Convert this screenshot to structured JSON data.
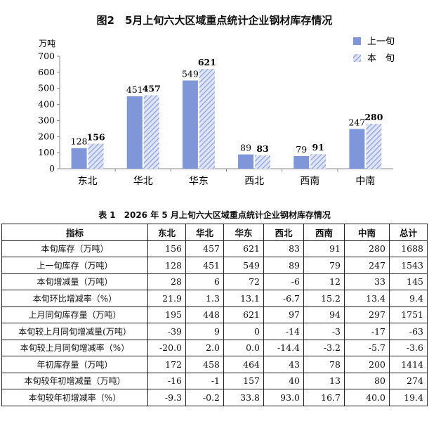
{
  "chart_title": "图2　5月上旬六大区域重点统计企业钢材库存情况",
  "chart_data": {
    "type": "bar",
    "title": "图2　5月上旬六大区域重点统计企业钢材库存情况",
    "ylabel": "万吨",
    "xlabel": "",
    "ylim": [
      0,
      700
    ],
    "yticks": [
      0,
      100,
      200,
      300,
      400,
      500,
      600,
      700
    ],
    "categories": [
      "东北",
      "华北",
      "华东",
      "西北",
      "西南",
      "中南"
    ],
    "series": [
      {
        "name": "上一旬",
        "values": [
          128,
          451,
          549,
          89,
          79,
          247
        ],
        "color": "#7f96d9",
        "pattern": "solid"
      },
      {
        "name": "本　旬",
        "values": [
          156,
          457,
          621,
          83,
          91,
          280
        ],
        "color": "#aebbe6",
        "pattern": "hatched"
      }
    ],
    "legend_position": "top-right",
    "grid": false
  },
  "table": {
    "title": "表 1　2026 年 5 月上旬六大区域重点统计企业钢材库存情况",
    "headers": [
      "指标",
      "东北",
      "华北",
      "华东",
      "西北",
      "西南",
      "中南",
      "总计"
    ],
    "rows": [
      [
        "本旬库存（万吨）",
        "156",
        "457",
        "621",
        "83",
        "91",
        "280",
        "1688"
      ],
      [
        "上一旬库存（万吨）",
        "128",
        "451",
        "549",
        "89",
        "79",
        "247",
        "1543"
      ],
      [
        "本旬增减量（万吨）",
        "28",
        "6",
        "72",
        "-6",
        "12",
        "33",
        "145"
      ],
      [
        "本旬环比增减率（%）",
        "21.9",
        "1.3",
        "13.1",
        "-6.7",
        "15.2",
        "13.4",
        "9.4"
      ],
      [
        "上月同旬库存量（万吨）",
        "195",
        "448",
        "621",
        "97",
        "94",
        "297",
        "1751"
      ],
      [
        "本旬较上月同旬增减量(万吨）",
        "-39",
        "9",
        "0",
        "-14",
        "-3",
        "-17",
        "-63"
      ],
      [
        "本旬较上月同旬增减率（%）",
        "-20.0",
        "2.0",
        "0.0",
        "-14.4",
        "-3.2",
        "-5.7",
        "-3.6"
      ],
      [
        "年初库存量（万吨）",
        "172",
        "458",
        "464",
        "43",
        "78",
        "200",
        "1414"
      ],
      [
        "本旬较年初增减量（万吨）",
        "-16",
        "-1",
        "157",
        "40",
        "13",
        "80",
        "274"
      ],
      [
        "本旬较年初增减率（%）",
        "-9.3",
        "-0.2",
        "33.8",
        "93.0",
        "16.7",
        "40.0",
        "19.4"
      ]
    ]
  }
}
